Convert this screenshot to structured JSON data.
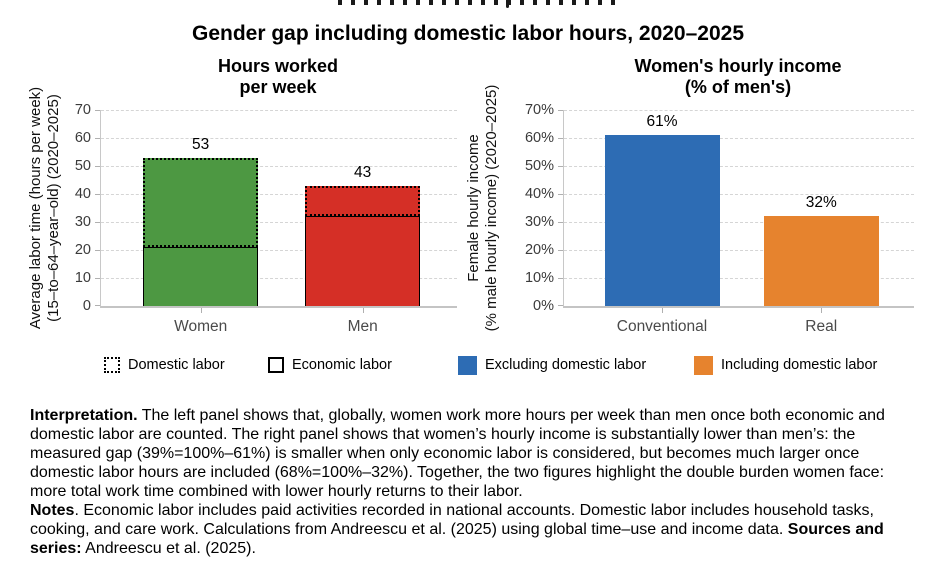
{
  "page": {
    "title": "Gender gap including domestic labor hours, 2020–2025"
  },
  "chart_data": [
    {
      "type": "bar",
      "panel": "left",
      "title_lines": [
        "Hours worked",
        "per week"
      ],
      "ylabel_lines": [
        "Average labor time (hours per week)",
        "(15–to–64–year–old) (2020–2025)"
      ],
      "categories": [
        "Women",
        "Men"
      ],
      "series": [
        {
          "name": "Economic labor",
          "values": [
            21,
            32
          ]
        },
        {
          "name": "Domestic labor",
          "values": [
            32,
            11
          ]
        }
      ],
      "totals": [
        53,
        43
      ],
      "total_labels": [
        "53",
        "43"
      ],
      "bar_colors": [
        "#4d9842",
        "#d52f26"
      ],
      "ylim": [
        0,
        70
      ],
      "yticks": [
        0,
        10,
        20,
        30,
        40,
        50,
        60,
        70
      ],
      "ytick_labels": [
        "0",
        "10",
        "20",
        "30",
        "40",
        "50",
        "60",
        "70"
      ],
      "grid": "horizontal-dashed",
      "legend_position": "bottom"
    },
    {
      "type": "bar",
      "panel": "right",
      "title_lines": [
        "Women's hourly income",
        "(% of men's)"
      ],
      "ylabel_lines": [
        "Female hourly income",
        "(% male hourly income) (2020–2025)"
      ],
      "categories": [
        "Conventional",
        "Real"
      ],
      "values": [
        61,
        32
      ],
      "value_labels": [
        "61%",
        "32%"
      ],
      "bar_colors": [
        "#2d6cb4",
        "#e6832e"
      ],
      "ylim": [
        0,
        70
      ],
      "yticks": [
        0,
        10,
        20,
        30,
        40,
        50,
        60,
        70
      ],
      "ytick_labels": [
        "0%",
        "10%",
        "20%",
        "30%",
        "40%",
        "50%",
        "60%",
        "70%"
      ],
      "grid": "horizontal-dashed",
      "legend_position": "bottom"
    }
  ],
  "legend": [
    {
      "label": "Domestic labor",
      "swatch": "dotted-outline",
      "color": "#000000"
    },
    {
      "label": "Economic labor",
      "swatch": "solid-outline",
      "color": "#000000"
    },
    {
      "label": "Excluding domestic labor",
      "swatch": "fill",
      "color": "#2d6cb4"
    },
    {
      "label": "Including domestic labor",
      "swatch": "fill",
      "color": "#e6832e"
    }
  ],
  "caption": {
    "interpretation_label": "Interpretation.",
    "interpretation_text": " The left panel shows that, globally, women work more hours per week than men once both economic and domestic labor are counted. The right panel shows that women’s hourly income is substantially lower than men’s: the measured gap (39%=100%–61%) is smaller when only economic labor is considered, but becomes much larger once domestic labor hours are included (68%=100%–32%). Together, the two figures highlight the double burden women face: more total work time combined with lower hourly returns to their labor.",
    "notes_label": "Notes",
    "notes_text": ". Economic labor includes paid activities recorded in national accounts. Domestic labor includes household tasks, cooking, and care work. Calculations from Andreescu et al. (2025) using global time–use and income data. ",
    "sources_label": "Sources and series:",
    "sources_text": " Andreescu et al. (2025)."
  }
}
